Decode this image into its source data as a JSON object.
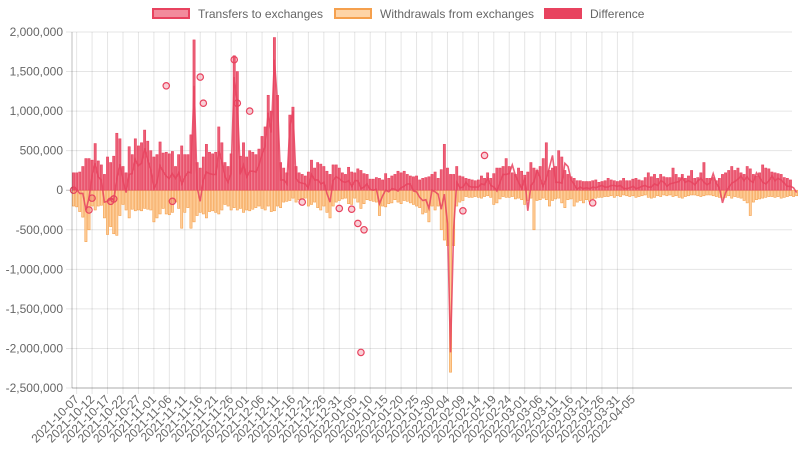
{
  "legend": {
    "items": [
      {
        "label": "Transfers to exchanges",
        "fill": "#f28b9c",
        "stroke": "#e8435f"
      },
      {
        "label": "Withdrawals from exchanges",
        "fill": "#fed4a6",
        "stroke": "#f5a04d"
      },
      {
        "label": "Difference",
        "fill": "#e8435f",
        "stroke": "#e8435f"
      }
    ]
  },
  "chart_data": {
    "type": "bar",
    "title": "",
    "xlabel": "",
    "ylabel": "",
    "ylim": [
      -2500000,
      2000000
    ],
    "y_ticks": [
      2000000,
      1500000,
      1000000,
      500000,
      0,
      -500000,
      -1000000,
      -1500000,
      -2000000,
      -2500000
    ],
    "y_tick_labels": [
      "2,000,000",
      "1,500,000",
      "1,000,000",
      "500,000",
      "0",
      "-500,000",
      "-1,000,000",
      "-1,500,000",
      "-2,000,000",
      "-2,500,000"
    ],
    "x_start": "2021-10-06",
    "x_tick_labels": [
      "2021-10-07",
      "2021-10-12",
      "2021-10-17",
      "2021-10-22",
      "2021-10-27",
      "2021-11-01",
      "2021-11-06",
      "2021-11-11",
      "2021-11-16",
      "2021-11-21",
      "2021-11-26",
      "2021-12-01",
      "2021-12-06",
      "2021-12-11",
      "2021-12-16",
      "2021-12-21",
      "2021-12-26",
      "2021-12-31",
      "2022-01-05",
      "2022-01-10",
      "2022-01-15",
      "2022-01-20",
      "2022-01-25",
      "2022-01-30",
      "2022-02-04",
      "2022-02-09",
      "2022-02-14",
      "2022-02-19",
      "2022-02-24",
      "2022-03-01",
      "2022-03-06",
      "2022-03-11",
      "2022-03-16",
      "2022-03-21",
      "2022-03-26",
      "2022-03-31",
      "2022-04-05"
    ],
    "grid": true,
    "legend_position": "top",
    "colors": {
      "transfers": "#e8435f",
      "withdrawals": "#f5a04d",
      "difference": "#e8435f"
    },
    "series": [
      {
        "name": "Transfers to exchanges",
        "values": [
          220000,
          220000,
          230000,
          300000,
          400000,
          400000,
          380000,
          590000,
          370000,
          320000,
          200000,
          420000,
          350000,
          430000,
          720000,
          650000,
          300000,
          220000,
          550000,
          450000,
          650000,
          560000,
          600000,
          760000,
          620000,
          500000,
          420000,
          450000,
          610000,
          470000,
          480000,
          460000,
          490000,
          300000,
          450000,
          560000,
          450000,
          450000,
          700000,
          1900000,
          350000,
          280000,
          420000,
          580000,
          480000,
          460000,
          480000,
          800000,
          600000,
          350000,
          300000,
          460000,
          1700000,
          1500000,
          430000,
          600000,
          420000,
          500000,
          480000,
          450000,
          520000,
          680000,
          800000,
          1200000,
          1000000,
          1930000,
          1200000,
          350000,
          280000,
          220000,
          950000,
          1050000,
          300000,
          220000,
          200000,
          180000,
          230000,
          380000,
          280000,
          350000,
          330000,
          300000,
          240000,
          200000,
          320000,
          320000,
          280000,
          220000,
          200000,
          290000,
          230000,
          220000,
          270000,
          250000,
          210000,
          200000,
          140000,
          140000,
          160000,
          150000,
          130000,
          210000,
          150000,
          180000,
          200000,
          240000,
          220000,
          240000,
          200000,
          180000,
          170000,
          180000,
          130000,
          150000,
          160000,
          170000,
          200000,
          230000,
          150000,
          260000,
          580000,
          280000,
          200000,
          200000,
          300000,
          180000,
          170000,
          150000,
          140000,
          130000,
          120000,
          130000,
          180000,
          150000,
          220000,
          150000,
          210000,
          280000,
          280000,
          300000,
          400000,
          300000,
          220000,
          200000,
          280000,
          240000,
          190000,
          230000,
          350000,
          280000,
          250000,
          300000,
          400000,
          600000,
          250000,
          280000,
          300000,
          500000,
          420000,
          250000,
          200000,
          170000,
          150000,
          120000,
          120000,
          110000,
          110000,
          110000,
          120000,
          130000,
          100000,
          110000,
          120000,
          150000,
          130000,
          120000,
          110000,
          120000,
          150000,
          120000,
          120000,
          140000,
          150000,
          130000,
          120000,
          160000,
          220000,
          170000,
          200000,
          150000,
          200000,
          170000,
          160000,
          160000,
          280000,
          200000,
          160000,
          200000,
          150000,
          180000,
          250000,
          150000,
          160000,
          220000,
          350000,
          150000,
          150000,
          160000,
          120000,
          150000,
          200000,
          220000,
          250000,
          300000,
          250000,
          280000,
          220000,
          200000,
          300000,
          270000,
          200000,
          180000,
          220000,
          320000,
          280000,
          270000,
          230000,
          220000,
          210000,
          200000,
          160000,
          150000,
          130000
        ]
      },
      {
        "name": "Withdrawals from exchanges",
        "values": [
          -200000,
          -210000,
          -270000,
          -340000,
          -650000,
          -500000,
          -200000,
          -250000,
          -200000,
          -190000,
          -350000,
          -560000,
          -460000,
          -550000,
          -570000,
          -320000,
          -180000,
          -250000,
          -350000,
          -240000,
          -260000,
          -250000,
          -260000,
          -230000,
          -240000,
          -250000,
          -400000,
          -350000,
          -300000,
          -230000,
          -300000,
          -310000,
          -280000,
          -150000,
          -230000,
          -480000,
          -280000,
          -220000,
          -480000,
          -400000,
          -320000,
          -280000,
          -300000,
          -350000,
          -270000,
          -260000,
          -280000,
          -300000,
          -250000,
          -180000,
          -200000,
          -250000,
          -220000,
          -250000,
          -230000,
          -280000,
          -250000,
          -260000,
          -240000,
          -220000,
          -200000,
          -230000,
          -250000,
          -200000,
          -270000,
          -260000,
          -200000,
          -220000,
          -150000,
          -140000,
          -130000,
          -100000,
          -150000,
          -120000,
          -110000,
          -100000,
          -200000,
          -180000,
          -150000,
          -220000,
          -250000,
          -200000,
          -280000,
          -350000,
          -200000,
          -150000,
          -130000,
          -110000,
          -100000,
          -170000,
          -180000,
          -100000,
          -150000,
          -230000,
          -170000,
          -120000,
          -130000,
          -140000,
          -150000,
          -320000,
          -200000,
          -210000,
          -170000,
          -160000,
          -120000,
          -150000,
          -170000,
          -130000,
          -140000,
          -160000,
          -180000,
          -200000,
          -220000,
          -300000,
          -280000,
          -400000,
          -200000,
          -250000,
          -200000,
          -500000,
          -630000,
          -700000,
          -2300000,
          -700000,
          -200000,
          -150000,
          -130000,
          -80000,
          -90000,
          -90000,
          -80000,
          -90000,
          -100000,
          -80000,
          -70000,
          -90000,
          -180000,
          -160000,
          -110000,
          -80000,
          -90000,
          -90000,
          -80000,
          -110000,
          -100000,
          -120000,
          -180000,
          -130000,
          -100000,
          -500000,
          -130000,
          -120000,
          -100000,
          -120000,
          -200000,
          -130000,
          -110000,
          -100000,
          -160000,
          -220000,
          -120000,
          -110000,
          -200000,
          -150000,
          -130000,
          -160000,
          -120000,
          -140000,
          -110000,
          -100000,
          -90000,
          -90000,
          -80000,
          -80000,
          -70000,
          -90000,
          -70000,
          -80000,
          -60000,
          -70000,
          -80000,
          -70000,
          -90000,
          -80000,
          -70000,
          -60000,
          -90000,
          -100000,
          -90000,
          -70000,
          -80000,
          -60000,
          -70000,
          -60000,
          -80000,
          -70000,
          -90000,
          -100000,
          -80000,
          -70000,
          -60000,
          -60000,
          -70000,
          -80000,
          -70000,
          -60000,
          -60000,
          -70000,
          -80000,
          -90000,
          -100000,
          -90000,
          -70000,
          -100000,
          -80000,
          -90000,
          -100000,
          -130000,
          -160000,
          -320000,
          -150000,
          -120000,
          -110000,
          -100000,
          -90000,
          -80000,
          -80000,
          -90000,
          -80000,
          -100000,
          -90000,
          -80000,
          -70000,
          -80000,
          -70000,
          -80000,
          -90000,
          -80000,
          -100000,
          -110000,
          -120000,
          -150000,
          -170000,
          -150000,
          -100000
        ]
      },
      {
        "name": "Difference",
        "values": [
          20000,
          10000,
          -40000,
          -40000,
          -250000,
          -100000,
          180000,
          340000,
          170000,
          130000,
          -150000,
          -140000,
          -110000,
          -120000,
          150000,
          330000,
          120000,
          -30000,
          200000,
          210000,
          390000,
          310000,
          340000,
          530000,
          380000,
          250000,
          20000,
          100000,
          310000,
          240000,
          180000,
          150000,
          210000,
          150000,
          220000,
          80000,
          170000,
          230000,
          220000,
          1320000,
          30000,
          -140000,
          120000,
          230000,
          210000,
          200000,
          200000,
          500000,
          350000,
          170000,
          100000,
          210000,
          1430000,
          1100000,
          200000,
          320000,
          170000,
          240000,
          240000,
          230000,
          320000,
          450000,
          550000,
          980000,
          730000,
          1650000,
          1100000,
          130000,
          130000,
          80000,
          820000,
          1000000,
          150000,
          100000,
          90000,
          80000,
          30000,
          200000,
          130000,
          130000,
          80000,
          100000,
          -40000,
          -150000,
          120000,
          170000,
          150000,
          110000,
          100000,
          120000,
          50000,
          120000,
          120000,
          20000,
          40000,
          80000,
          10000,
          0,
          10000,
          -170000,
          -70000,
          0,
          -20000,
          20000,
          10000,
          -10000,
          30000,
          50000,
          80000,
          80000,
          -10000,
          -20000,
          -90000,
          -130000,
          -120000,
          -230000,
          0,
          -20000,
          -50000,
          -240000,
          -50000,
          -420000,
          -2050000,
          -500000,
          100000,
          30000,
          40000,
          100000,
          50000,
          40000,
          40000,
          40000,
          80000,
          70000,
          150000,
          60000,
          40000,
          -10000,
          100000,
          200000,
          200000,
          210000,
          320000,
          190000,
          100000,
          20000,
          160000,
          -260000,
          60000,
          110000,
          250000,
          160000,
          50000,
          140000,
          290000,
          440000,
          100000,
          100000,
          90000,
          340000,
          300000,
          130000,
          80000,
          10000,
          40000,
          20000,
          30000,
          20000,
          40000,
          30000,
          50000,
          60000,
          40000,
          40000,
          60000,
          60000,
          50000,
          60000,
          20000,
          20000,
          30000,
          50000,
          20000,
          30000,
          50000,
          60000,
          40000,
          40000,
          80000,
          60000,
          120000,
          100000,
          50000,
          80000,
          90000,
          100000,
          110000,
          160000,
          100000,
          120000,
          100000,
          70000,
          120000,
          150000,
          100000,
          70000,
          90000,
          210000,
          90000,
          30000,
          -160000,
          -30000,
          40000,
          90000,
          110000,
          140000,
          180000,
          120000,
          170000,
          120000,
          100000,
          220000,
          160000,
          100000,
          80000,
          120000,
          180000,
          120000,
          150000,
          130000,
          90000,
          50000,
          50000,
          30000,
          -30000
        ]
      }
    ],
    "difference_points": [
      {
        "x": "2021-10-06",
        "y": 0
      },
      {
        "x": "2021-10-11",
        "y": -250000
      },
      {
        "x": "2021-10-12",
        "y": -100000
      },
      {
        "x": "2021-10-18",
        "y": -140000
      },
      {
        "x": "2021-10-19",
        "y": -110000
      },
      {
        "x": "2021-11-05",
        "y": 1320000
      },
      {
        "x": "2021-11-07",
        "y": -140000
      },
      {
        "x": "2021-11-16",
        "y": 1430000
      },
      {
        "x": "2021-11-17",
        "y": 1100000
      },
      {
        "x": "2021-11-27",
        "y": 1650000
      },
      {
        "x": "2021-11-28",
        "y": 1100000
      },
      {
        "x": "2021-12-02",
        "y": 1000000
      },
      {
        "x": "2021-12-19",
        "y": -150000
      },
      {
        "x": "2021-12-31",
        "y": -230000
      },
      {
        "x": "2022-01-04",
        "y": -240000
      },
      {
        "x": "2022-01-06",
        "y": -420000
      },
      {
        "x": "2022-01-07",
        "y": -2050000
      },
      {
        "x": "2022-01-08",
        "y": -500000
      },
      {
        "x": "2022-02-09",
        "y": -260000
      },
      {
        "x": "2022-02-16",
        "y": 440000
      },
      {
        "x": "2022-03-23",
        "y": -160000
      }
    ]
  }
}
